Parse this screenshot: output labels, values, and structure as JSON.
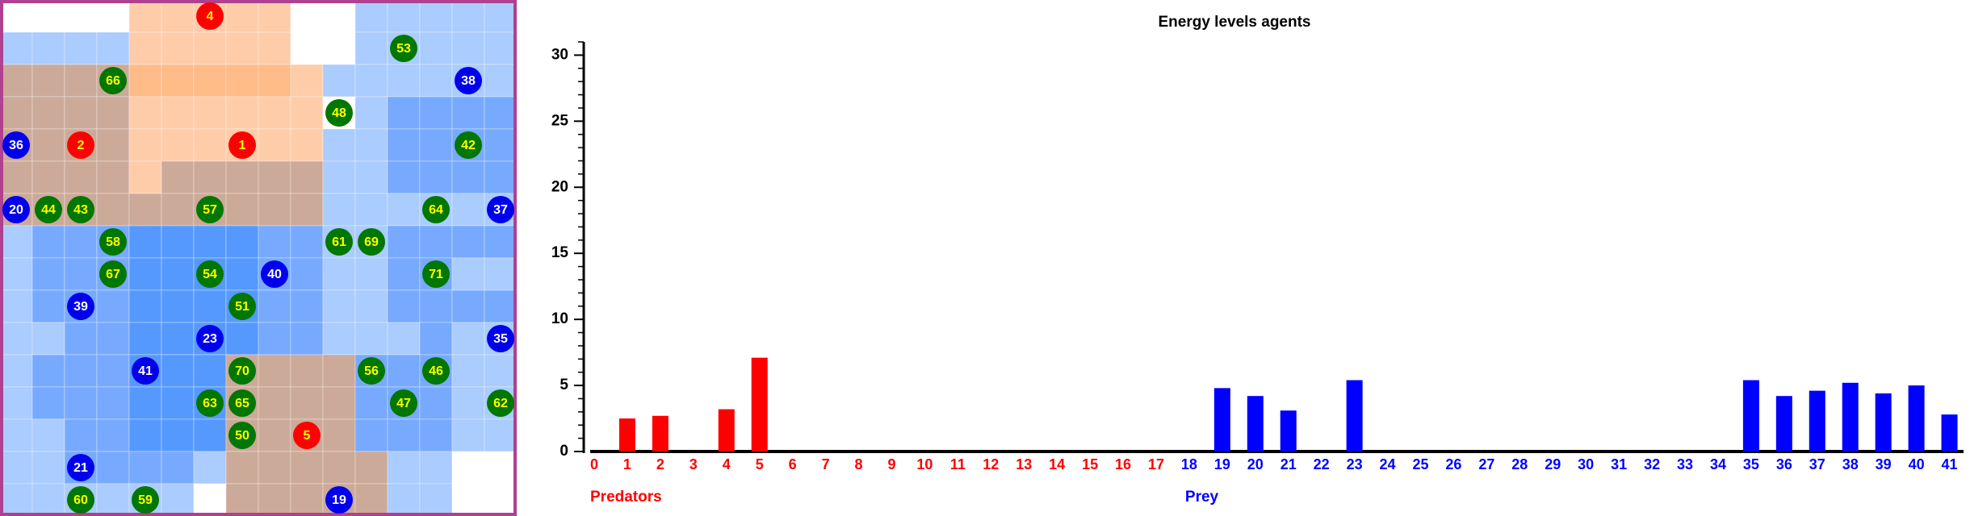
{
  "grid": {
    "agents": [
      {
        "label": "4",
        "color": "#ff0000"
      },
      {
        "label": "53",
        "color": "#007700"
      },
      {
        "label": "66",
        "color": "#007700"
      },
      {
        "label": "38",
        "color": "#0000ee"
      },
      {
        "label": "48",
        "color": "#007700"
      },
      {
        "label": "36",
        "color": "#0000ee"
      },
      {
        "label": "2",
        "color": "#ff0000"
      },
      {
        "label": "1",
        "color": "#ff0000"
      },
      {
        "label": "42",
        "color": "#007700"
      },
      {
        "label": "20",
        "color": "#0000ee"
      },
      {
        "label": "44",
        "color": "#007700"
      },
      {
        "label": "43",
        "color": "#007700"
      },
      {
        "label": "57",
        "color": "#007700"
      },
      {
        "label": "64",
        "color": "#007700"
      },
      {
        "label": "37",
        "color": "#0000ee"
      },
      {
        "label": "58",
        "color": "#007700"
      },
      {
        "label": "61",
        "color": "#007700"
      },
      {
        "label": "69",
        "color": "#007700"
      },
      {
        "label": "67",
        "color": "#007700"
      },
      {
        "label": "54",
        "color": "#007700"
      },
      {
        "label": "40",
        "color": "#0000ee"
      },
      {
        "label": "71",
        "color": "#007700"
      },
      {
        "label": "39",
        "color": "#0000ee"
      },
      {
        "label": "51",
        "color": "#007700"
      },
      {
        "label": "23",
        "color": "#0000ee"
      },
      {
        "label": "35",
        "color": "#0000ee"
      },
      {
        "label": "41",
        "color": "#0000ee"
      },
      {
        "label": "70",
        "color": "#007700"
      },
      {
        "label": "56",
        "color": "#007700"
      },
      {
        "label": "46",
        "color": "#007700"
      },
      {
        "label": "63",
        "color": "#007700"
      },
      {
        "label": "65",
        "color": "#007700"
      },
      {
        "label": "47",
        "color": "#007700"
      },
      {
        "label": "62",
        "color": "#007700"
      },
      {
        "label": "50",
        "color": "#007700"
      },
      {
        "label": "5",
        "color": "#ff0000"
      },
      {
        "label": "21",
        "color": "#0000ee"
      },
      {
        "label": "60",
        "color": "#007700"
      },
      {
        "label": "59",
        "color": "#007700"
      },
      {
        "label": "19",
        "color": "#0000ee"
      }
    ]
  },
  "chart_data": {
    "type": "bar",
    "title": "Energy levels agents",
    "categories": [
      0,
      1,
      2,
      3,
      4,
      5,
      6,
      7,
      8,
      9,
      10,
      11,
      12,
      13,
      14,
      15,
      16,
      17,
      18,
      19,
      20,
      21,
      22,
      23,
      24,
      25,
      26,
      27,
      28,
      29,
      30,
      31,
      32,
      33,
      34,
      35,
      36,
      37,
      38,
      39,
      40,
      41
    ],
    "series": [
      {
        "name": "Predators",
        "color": "#ff0000",
        "values": [
          0,
          2.5,
          2.7,
          0,
          3.2,
          7.1,
          0,
          0,
          0,
          0,
          0,
          0,
          0,
          0,
          0,
          0,
          0,
          0,
          null,
          null,
          null,
          null,
          null,
          null,
          null,
          null,
          null,
          null,
          null,
          null,
          null,
          null,
          null,
          null,
          null,
          null,
          null,
          null,
          null,
          null,
          null,
          null
        ]
      },
      {
        "name": "Prey",
        "color": "#0000ff",
        "values": [
          null,
          null,
          null,
          null,
          null,
          null,
          null,
          null,
          null,
          null,
          null,
          null,
          null,
          null,
          null,
          null,
          null,
          null,
          0,
          4.8,
          4.2,
          3.1,
          0,
          5.4,
          0,
          0,
          0,
          0,
          0,
          0,
          0,
          0,
          0,
          0,
          0,
          5.4,
          4.2,
          4.6,
          5.2,
          4.4,
          5.0,
          2.8
        ]
      }
    ],
    "ylim": [
      0,
      31
    ],
    "yticks": [
      0,
      5,
      10,
      15,
      20,
      25,
      30
    ],
    "yminor_ticks": [
      1,
      2,
      3,
      4,
      6,
      7,
      8,
      9,
      11,
      12,
      13,
      14,
      16,
      17,
      18,
      19,
      21,
      22,
      23,
      24,
      26,
      27,
      28,
      29,
      31
    ]
  }
}
